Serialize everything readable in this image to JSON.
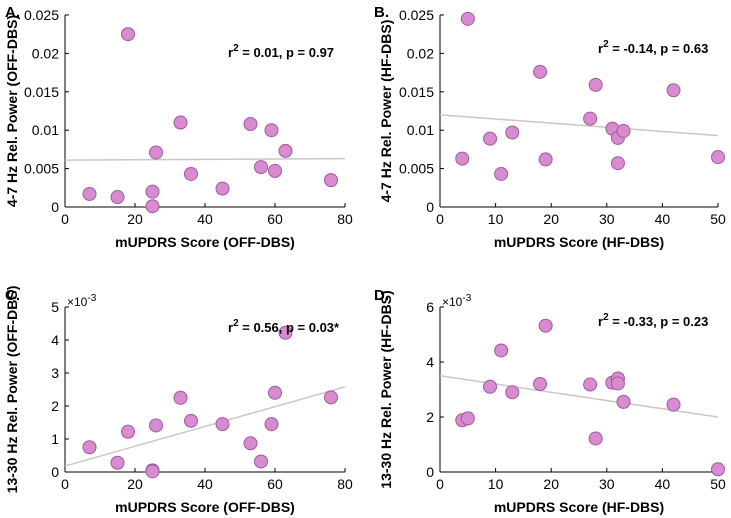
{
  "colors": {
    "point_fill": "#d98bd0",
    "point_stroke": "#9e5aa0",
    "fit_line": "#c8c8c8"
  },
  "chart_data": [
    {
      "type": "scatter",
      "panel_label": "A.",
      "stats": {
        "r2_prefix": "r",
        "r2_sup": "2",
        "r2_rest": "= 0.01,  p = 0.97"
      },
      "xlabel": "mUPDRS Score (OFF-DBS)",
      "ylabel": "4-7 Hz Rel. Power (OFF-DBS)",
      "xlim": [
        0,
        80
      ],
      "ylim": [
        0,
        0.025
      ],
      "xticks": [
        0,
        20,
        40,
        60,
        80
      ],
      "xtick_labels": [
        "0",
        "20",
        "40",
        "60",
        "80"
      ],
      "yticks": [
        0,
        0.005,
        0.01,
        0.015,
        0.02,
        0.025
      ],
      "ytick_labels": [
        "0",
        "0.005",
        "0.01",
        "0.015",
        "0.02",
        "0.025"
      ],
      "exponent_label": null,
      "points": [
        {
          "x": 7,
          "y": 0.0017
        },
        {
          "x": 15,
          "y": 0.0013
        },
        {
          "x": 18,
          "y": 0.0225
        },
        {
          "x": 25,
          "y": 0.002
        },
        {
          "x": 25,
          "y": 0.0001
        },
        {
          "x": 26,
          "y": 0.0071
        },
        {
          "x": 33,
          "y": 0.011
        },
        {
          "x": 36,
          "y": 0.0043
        },
        {
          "x": 45,
          "y": 0.0024
        },
        {
          "x": 53,
          "y": 0.0108
        },
        {
          "x": 56,
          "y": 0.0052
        },
        {
          "x": 59,
          "y": 0.01
        },
        {
          "x": 60,
          "y": 0.0047
        },
        {
          "x": 63,
          "y": 0.0073
        },
        {
          "x": 76,
          "y": 0.0035
        }
      ],
      "fit": {
        "x": [
          0,
          80
        ],
        "y": [
          0.0061,
          0.0063
        ]
      }
    },
    {
      "type": "scatter",
      "panel_label": "B.",
      "stats": {
        "r2_prefix": "r",
        "r2_sup": "2",
        "r2_rest": "= -0.14,  p = 0.63"
      },
      "xlabel": "mUPDRS Score (HF-DBS)",
      "ylabel": "4-7 Hz Rel. Power (HF-DBS)",
      "xlim": [
        0,
        50
      ],
      "ylim": [
        0,
        0.025
      ],
      "xticks": [
        0,
        10,
        20,
        30,
        40,
        50
      ],
      "xtick_labels": [
        "0",
        "10",
        "20",
        "30",
        "40",
        "50"
      ],
      "yticks": [
        0,
        0.005,
        0.01,
        0.015,
        0.02,
        0.025
      ],
      "ytick_labels": [
        "0",
        "0.005",
        "0.01",
        "0.015",
        "0.02",
        "0.025"
      ],
      "exponent_label": null,
      "points": [
        {
          "x": 4,
          "y": 0.0063
        },
        {
          "x": 5,
          "y": 0.0245
        },
        {
          "x": 9,
          "y": 0.0089
        },
        {
          "x": 11,
          "y": 0.0043
        },
        {
          "x": 13,
          "y": 0.0097
        },
        {
          "x": 18,
          "y": 0.0176
        },
        {
          "x": 19,
          "y": 0.0062
        },
        {
          "x": 27,
          "y": 0.0115
        },
        {
          "x": 28,
          "y": 0.0159
        },
        {
          "x": 31,
          "y": 0.0102
        },
        {
          "x": 32,
          "y": 0.009
        },
        {
          "x": 32,
          "y": 0.0057
        },
        {
          "x": 33,
          "y": 0.0099
        },
        {
          "x": 42,
          "y": 0.0152
        },
        {
          "x": 50,
          "y": 0.0065
        }
      ],
      "fit": {
        "x": [
          0,
          50
        ],
        "y": [
          0.012,
          0.0093
        ]
      }
    },
    {
      "type": "scatter",
      "panel_label": "C.",
      "stats": {
        "r2_prefix": "r",
        "r2_sup": "2",
        "r2_rest": "= 0.56,  p = 0.03*"
      },
      "xlabel": "mUPDRS Score (OFF-DBS)",
      "ylabel": "13-30 Hz Rel. Power (OFF-DBS)",
      "xlim": [
        0,
        80
      ],
      "ylim": [
        0,
        5
      ],
      "xticks": [
        0,
        20,
        40,
        60,
        80
      ],
      "xtick_labels": [
        "0",
        "20",
        "40",
        "60",
        "80"
      ],
      "yticks": [
        0,
        1,
        2,
        3,
        4,
        5
      ],
      "ytick_labels": [
        "0",
        "1",
        "2",
        "3",
        "4",
        "5"
      ],
      "exponent_label": {
        "base": "×10",
        "exp": "-3"
      },
      "points": [
        {
          "x": 7,
          "y": 0.75
        },
        {
          "x": 15,
          "y": 0.28
        },
        {
          "x": 18,
          "y": 1.22
        },
        {
          "x": 25,
          "y": 0.05
        },
        {
          "x": 25,
          "y": 0.02
        },
        {
          "x": 26,
          "y": 1.41
        },
        {
          "x": 33,
          "y": 2.25
        },
        {
          "x": 36,
          "y": 1.55
        },
        {
          "x": 45,
          "y": 1.45
        },
        {
          "x": 53,
          "y": 0.87
        },
        {
          "x": 56,
          "y": 0.32
        },
        {
          "x": 59,
          "y": 1.45
        },
        {
          "x": 60,
          "y": 2.4
        },
        {
          "x": 63,
          "y": 4.22
        },
        {
          "x": 76,
          "y": 2.26
        }
      ],
      "fit": {
        "x": [
          0,
          80
        ],
        "y": [
          0.18,
          2.58
        ]
      }
    },
    {
      "type": "scatter",
      "panel_label": "D.",
      "stats": {
        "r2_prefix": "r",
        "r2_sup": "2",
        "r2_rest": "= -0.33,  p = 0.23"
      },
      "xlabel": "mUPDRS Score (HF-DBS)",
      "ylabel": "13-30 Hz Rel. Power (HF-DBS)",
      "xlim": [
        0,
        50
      ],
      "ylim": [
        0,
        6
      ],
      "xticks": [
        0,
        10,
        20,
        30,
        40,
        50
      ],
      "xtick_labels": [
        "0",
        "10",
        "20",
        "30",
        "40",
        "50"
      ],
      "yticks": [
        0,
        2,
        4,
        6
      ],
      "ytick_labels": [
        "0",
        "2",
        "4",
        "6"
      ],
      "exponent_label": {
        "base": "×10",
        "exp": "-3"
      },
      "points": [
        {
          "x": 4,
          "y": 1.88
        },
        {
          "x": 5,
          "y": 1.95
        },
        {
          "x": 9,
          "y": 3.1
        },
        {
          "x": 11,
          "y": 4.42
        },
        {
          "x": 13,
          "y": 2.9
        },
        {
          "x": 18,
          "y": 3.2
        },
        {
          "x": 19,
          "y": 5.32
        },
        {
          "x": 27,
          "y": 3.18
        },
        {
          "x": 28,
          "y": 1.22
        },
        {
          "x": 31,
          "y": 3.25
        },
        {
          "x": 32,
          "y": 3.4
        },
        {
          "x": 32,
          "y": 3.22
        },
        {
          "x": 33,
          "y": 2.55
        },
        {
          "x": 42,
          "y": 2.45
        },
        {
          "x": 50,
          "y": 0.1
        }
      ],
      "fit": {
        "x": [
          0,
          50
        ],
        "y": [
          3.5,
          2.0
        ]
      }
    }
  ]
}
